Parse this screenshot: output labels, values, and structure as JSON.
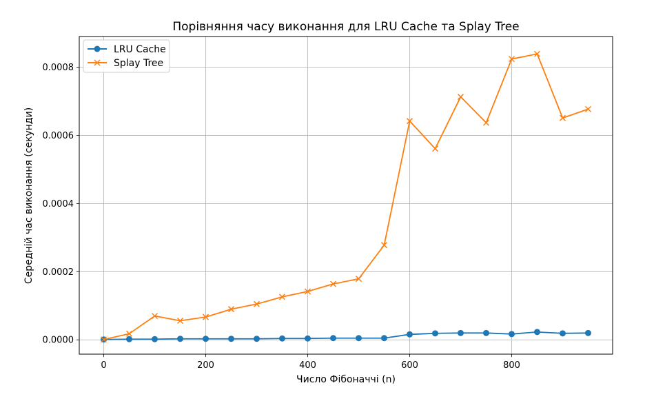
{
  "chart_data": {
    "type": "line",
    "title": "Порівняння часу виконання для LRU Cache та Splay Tree",
    "xlabel": "Число Фібоначчі (n)",
    "ylabel": "Середній час виконання (секунди)",
    "xlim": [
      -48,
      998
    ],
    "ylim": [
      -4.2e-05,
      0.00089
    ],
    "xticks": [
      0,
      200,
      400,
      600,
      800
    ],
    "xtick_labels": [
      "0",
      "200",
      "400",
      "600",
      "800"
    ],
    "yticks": [
      0,
      0.0002,
      0.0004,
      0.0006,
      0.0008
    ],
    "ytick_labels": [
      "0.0000",
      "0.0002",
      "0.0004",
      "0.0006",
      "0.0008"
    ],
    "grid": true,
    "legend_position": "top-left",
    "x": [
      0,
      50,
      100,
      150,
      200,
      250,
      300,
      350,
      400,
      450,
      500,
      550,
      600,
      650,
      700,
      750,
      800,
      850,
      900,
      950
    ],
    "series": [
      {
        "name": "LRU Cache",
        "marker": "circle",
        "color": "#1f77b4",
        "values": [
          1e-06,
          2e-06,
          2e-06,
          3e-06,
          3e-06,
          3e-06,
          3e-06,
          4e-06,
          4e-06,
          5e-06,
          5e-06,
          5e-06,
          1.6e-05,
          1.9e-05,
          2e-05,
          2e-05,
          1.7e-05,
          2.3e-05,
          1.9e-05,
          2e-05
        ]
      },
      {
        "name": "Splay Tree",
        "marker": "x",
        "color": "#ff7f0e",
        "values": [
          1e-06,
          1.8e-05,
          7e-05,
          5.6e-05,
          6.7e-05,
          9e-05,
          0.000105,
          0.000126,
          0.000142,
          0.000164,
          0.000179,
          0.000278,
          0.000642,
          0.000561,
          0.000713,
          0.000637,
          0.000824,
          0.000839,
          0.000651,
          0.000677
        ]
      }
    ]
  }
}
